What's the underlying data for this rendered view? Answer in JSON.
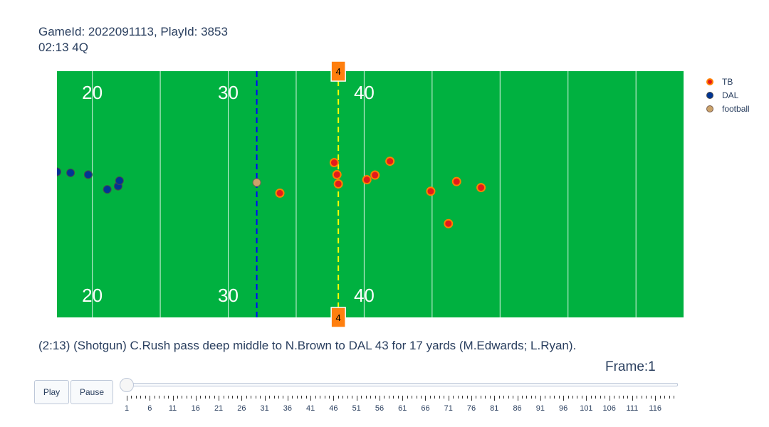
{
  "title": {
    "line1": "GameId: 2022091113, PlayId: 3853",
    "line2": "02:13 4Q"
  },
  "play_description": "(2:13) (Shotgun) C.Rush pass deep middle to N.Brown to DAL 43 for 17 yards (M.Edwards; L.Ryan).",
  "frame_label": "Frame:1",
  "controls": {
    "play_label": "Play",
    "pause_label": "Pause"
  },
  "slider": {
    "current_frame": 1,
    "max_frame": 120,
    "tick_labels": [
      "1",
      "6",
      "11",
      "16",
      "21",
      "26",
      "31",
      "36",
      "41",
      "46",
      "51",
      "56",
      "61",
      "66",
      "71",
      "76",
      "81",
      "86",
      "91",
      "96",
      "101",
      "106",
      "111",
      "116"
    ]
  },
  "colors": {
    "field": "#00b140",
    "TB_fill": "#e31a1c",
    "TB_line": "#ff8000",
    "DAL_fill": "#003594",
    "DAL_line": "#4a4a4a",
    "football_fill": "#cba26a",
    "football_line": "#7a6050",
    "scrimmage": "#0000ff",
    "first_down": "#ffff00",
    "marker": "#ff7f0e"
  },
  "chart_data": {
    "type": "scatter",
    "title": "GameId: 2022091113, PlayId: 3853",
    "subtitle": "02:13 4Q",
    "xlim": [
      17.4,
      63.5
    ],
    "ylim": [
      0,
      53.3
    ],
    "grid": false,
    "legend_position": "right",
    "yard_numbers": [
      "20",
      "30",
      "40"
    ],
    "down_marker_label": "4",
    "line_of_scrimmage_x": 32.1,
    "first_down_x": 38.1,
    "series": [
      {
        "name": "TB",
        "points": [
          [
            33.8,
            26.9
          ],
          [
            37.8,
            33.5
          ],
          [
            38.0,
            30.9
          ],
          [
            38.1,
            28.9
          ],
          [
            40.2,
            29.8
          ],
          [
            40.8,
            30.8
          ],
          [
            41.9,
            33.8
          ],
          [
            44.9,
            27.3
          ],
          [
            46.2,
            20.3
          ],
          [
            46.8,
            29.4
          ],
          [
            48.6,
            28.1
          ]
        ]
      },
      {
        "name": "DAL",
        "points": [
          [
            17.4,
            31.5
          ],
          [
            18.4,
            31.3
          ],
          [
            19.7,
            30.9
          ],
          [
            21.1,
            27.7
          ],
          [
            21.9,
            28.4
          ],
          [
            22.0,
            29.6
          ]
        ]
      },
      {
        "name": "football",
        "points": [
          [
            32.1,
            29.2
          ]
        ]
      }
    ]
  }
}
